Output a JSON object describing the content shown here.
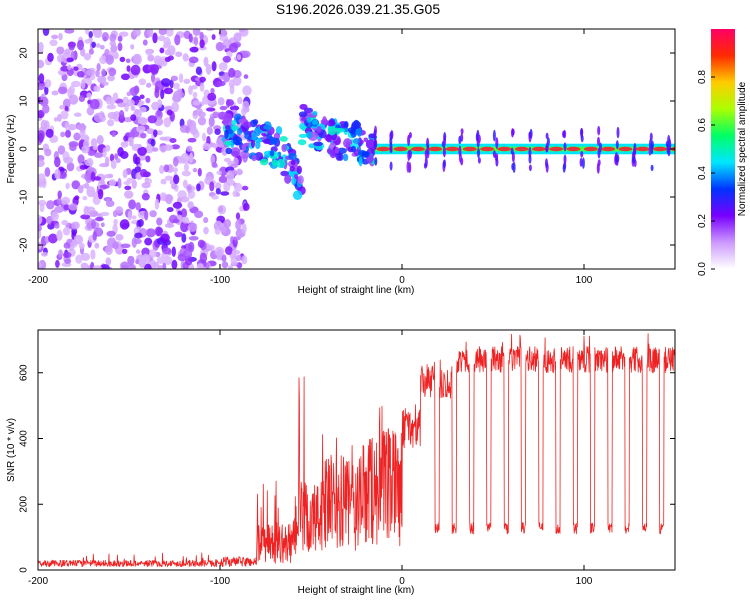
{
  "figure": {
    "title": "S196.2026.039.21.35.G05"
  },
  "chart_data": [
    {
      "type": "heatmap",
      "xlabel": "Height of straight line (km)",
      "ylabel": "Frequency (Hz)",
      "xlim": [
        -200,
        150
      ],
      "ylim": [
        -25,
        25
      ],
      "xticks": [
        -200,
        -100,
        0,
        100
      ],
      "yticks": [
        -20,
        -10,
        0,
        10,
        20
      ],
      "colorbar": {
        "label": "Normalized spectral amplitude",
        "range": [
          0.0,
          1.0
        ],
        "ticks": [
          0.0,
          0.2,
          0.4,
          0.6,
          0.8
        ],
        "tick_labels": [
          "0.0",
          "0.2",
          "0.4",
          "0.6",
          "0.8"
        ],
        "colormap": [
          "#ffffff",
          "#cc99ff",
          "#7700ff",
          "#0033ff",
          "#00e6ff",
          "#00ff66",
          "#aaff00",
          "#ffcc00",
          "#ff2a00",
          "#ff0066"
        ]
      },
      "features": {
        "noise_region_x": [
          -200,
          -85
        ],
        "transition_region_x": [
          -100,
          -15
        ],
        "coherent_line_x": [
          -15,
          150
        ],
        "coherent_line_frequency_hz": 0,
        "line_amplitude": 0.95,
        "modulation_period_km": 9.5
      }
    },
    {
      "type": "line",
      "xlabel": "Height of straight line (km)",
      "ylabel": "SNR (10 * v/v)",
      "xlim": [
        -200,
        150
      ],
      "ylim": [
        0,
        730
      ],
      "xticks": [
        -200,
        -100,
        0,
        100
      ],
      "yticks": [
        0,
        200,
        400,
        600
      ],
      "series": [
        {
          "name": "SNR",
          "color": "#ee2222",
          "segments": [
            {
              "x": [
                -200,
                -100
              ],
              "baseline": 20,
              "noise": 10,
              "spike_max": 55
            },
            {
              "x": [
                -100,
                -80
              ],
              "baseline": 25,
              "noise": 15,
              "spike_max": 70
            },
            {
              "x": [
                -80,
                -60
              ],
              "baseline": 80,
              "noise": 60,
              "spike_max": 290
            },
            {
              "x": [
                -60,
                -45
              ],
              "baseline": 150,
              "noise": 120,
              "spike_max": 590
            },
            {
              "x": [
                -45,
                -20
              ],
              "baseline": 200,
              "noise": 150,
              "spike_max": 480
            },
            {
              "x": [
                -20,
                0
              ],
              "baseline": 250,
              "noise": 180,
              "spike_max": 550
            },
            {
              "x": [
                0,
                10
              ],
              "baseline": 430,
              "noise": 60,
              "spike_max": 540
            },
            {
              "x": [
                10,
                30
              ],
              "baseline": 570,
              "noise": 50,
              "spike_max": 640
            },
            {
              "x": [
                30,
                150
              ],
              "baseline": 640,
              "noise": 40,
              "spike_max": 720
            }
          ],
          "dropouts": {
            "start_x": 18,
            "period_km": 9.5,
            "width_km": 2.4,
            "minimum": 120
          }
        }
      ]
    }
  ]
}
